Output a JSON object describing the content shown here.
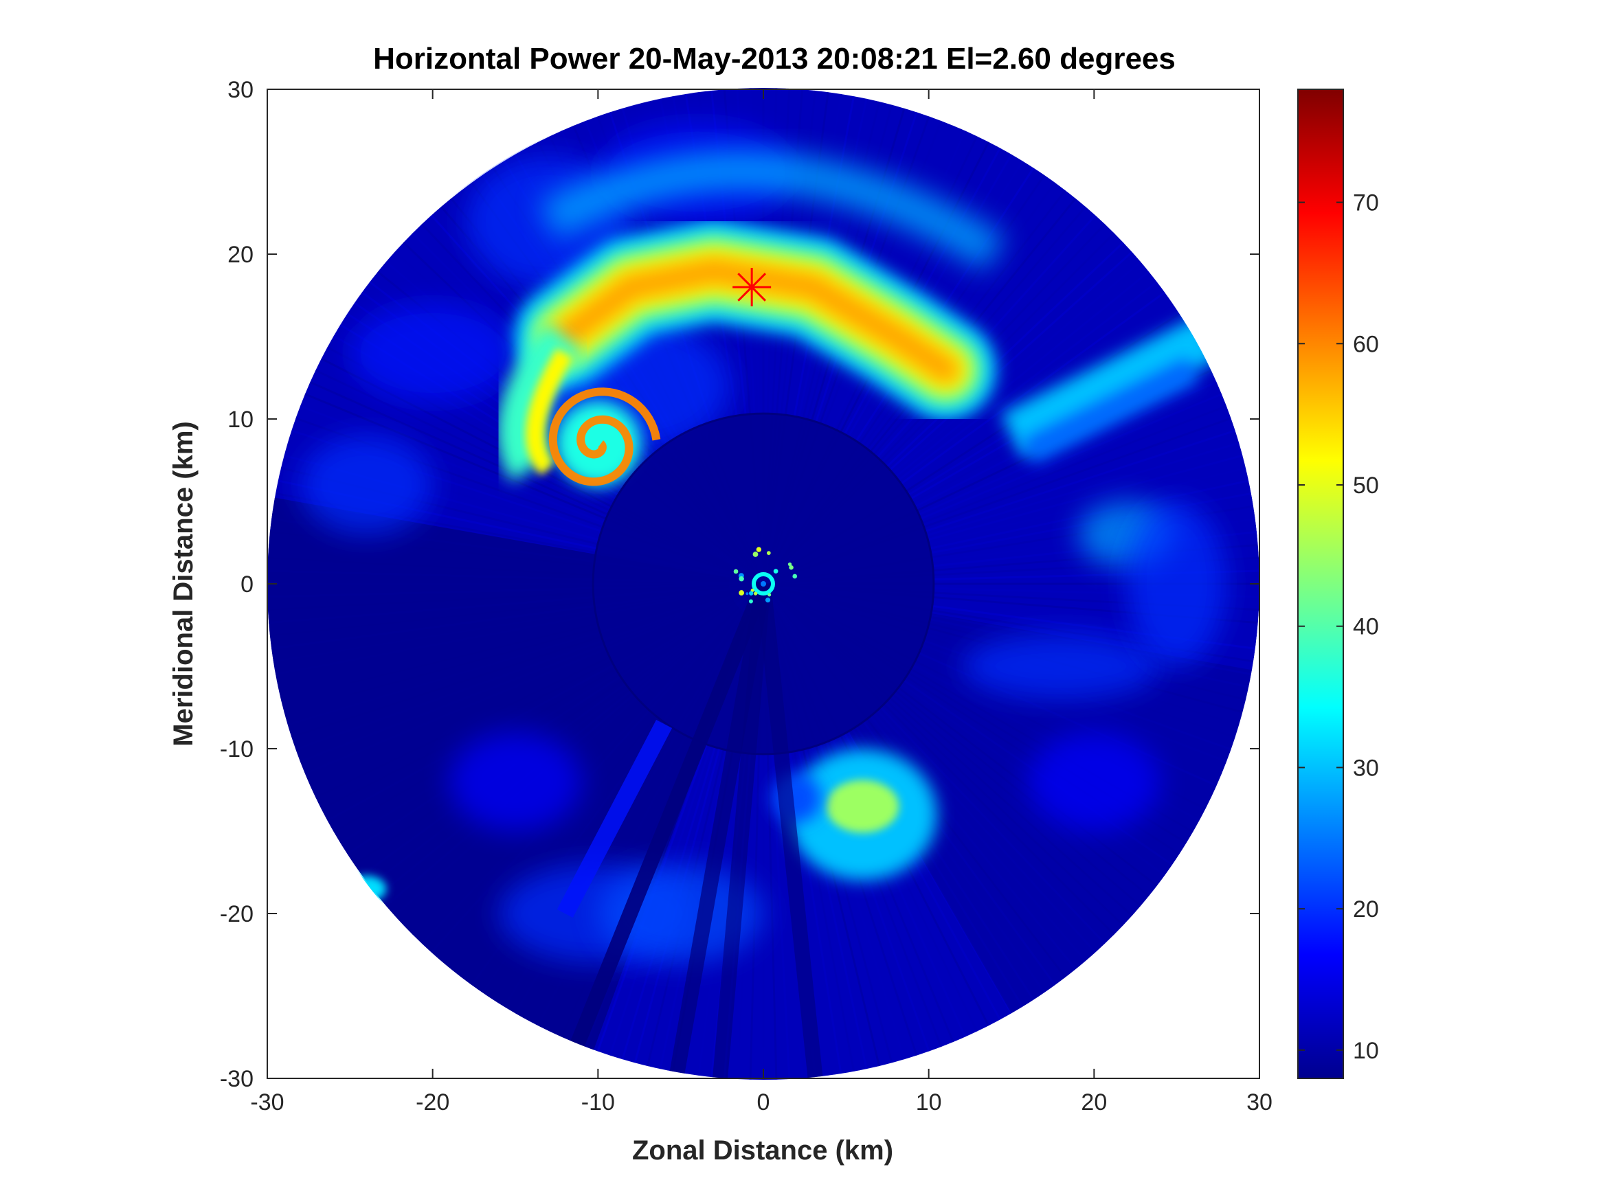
{
  "chart_data": {
    "type": "heatmap",
    "title": "Horizontal Power 20-May-2013 20:08:21 El=2.60 degrees",
    "xlabel": "Zonal Distance (km)",
    "ylabel": "Meridional Distance (km)",
    "xlim": [
      -30,
      30
    ],
    "ylim": [
      -30,
      30
    ],
    "xticks": [
      -30,
      -20,
      -10,
      0,
      10,
      20,
      30
    ],
    "yticks": [
      30,
      20,
      10,
      0,
      -10,
      -20,
      -30
    ],
    "xtick_labels": [
      "-30",
      "-20",
      "-10",
      "0",
      "10",
      "20",
      "30"
    ],
    "ytick_labels": [
      "30",
      "20",
      "10",
      "0",
      "-10",
      "-20",
      "-30"
    ],
    "grid": false,
    "colormap": "jet",
    "colorbar": {
      "range": [
        8,
        78
      ],
      "ticks": [
        10,
        20,
        30,
        40,
        50,
        60,
        70
      ],
      "tick_labels": [
        "10",
        "20",
        "30",
        "40",
        "50",
        "60",
        "70"
      ]
    },
    "data_extent": {
      "center": [
        0,
        0
      ],
      "radius_km": 30,
      "inner_scan_radius_km": 10.3
    },
    "background_level": 12,
    "echo_regions": [
      {
        "name": "main-echo-band",
        "value": 58,
        "points": [
          [
            -12.0,
            15.0
          ],
          [
            -8.0,
            18.0
          ],
          [
            -3.0,
            19.0
          ],
          [
            3.0,
            18.0
          ],
          [
            8.0,
            15.0
          ],
          [
            11.0,
            13.0
          ]
        ]
      },
      {
        "name": "hook-spiral",
        "value": 60,
        "center": [
          -10.0,
          8.5
        ]
      },
      {
        "name": "southern-cell",
        "value": 45,
        "center": [
          6.0,
          -14.0
        ]
      },
      {
        "name": "northeast-spoke",
        "value": 30,
        "points": [
          [
            15.0,
            9.0
          ],
          [
            27.0,
            15.0
          ]
        ]
      }
    ],
    "marker": {
      "symbol": "asterisk",
      "x": -0.7,
      "y": 18.0,
      "color": "#ff0000"
    }
  }
}
